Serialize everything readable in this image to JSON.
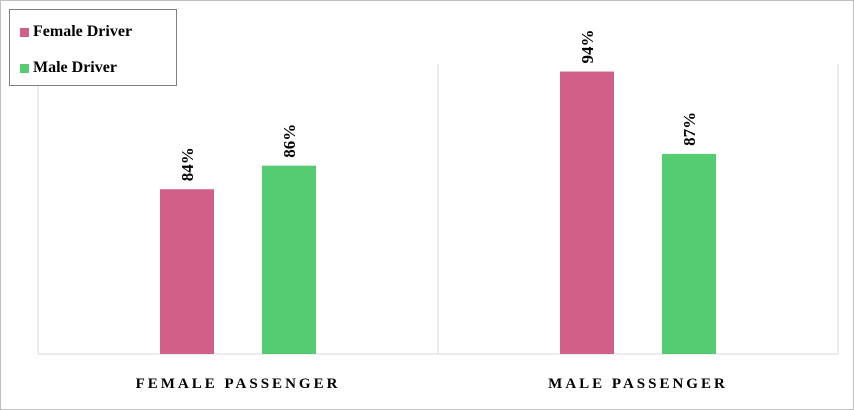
{
  "chart_data": {
    "type": "bar",
    "categories": [
      "FEMALE PASSENGER",
      "MALE PASSENGER"
    ],
    "series": [
      {
        "name": "Female Driver",
        "values": [
          84,
          94
        ],
        "labels": [
          "84%",
          "94%"
        ],
        "color": "#d0608a"
      },
      {
        "name": "Male Driver",
        "values": [
          86,
          87
        ],
        "labels": [
          "86%",
          "87%"
        ],
        "color": "#55cc72"
      }
    ],
    "ylim": [
      70,
      96
    ],
    "grid": false,
    "legend_placement": "top-left"
  }
}
